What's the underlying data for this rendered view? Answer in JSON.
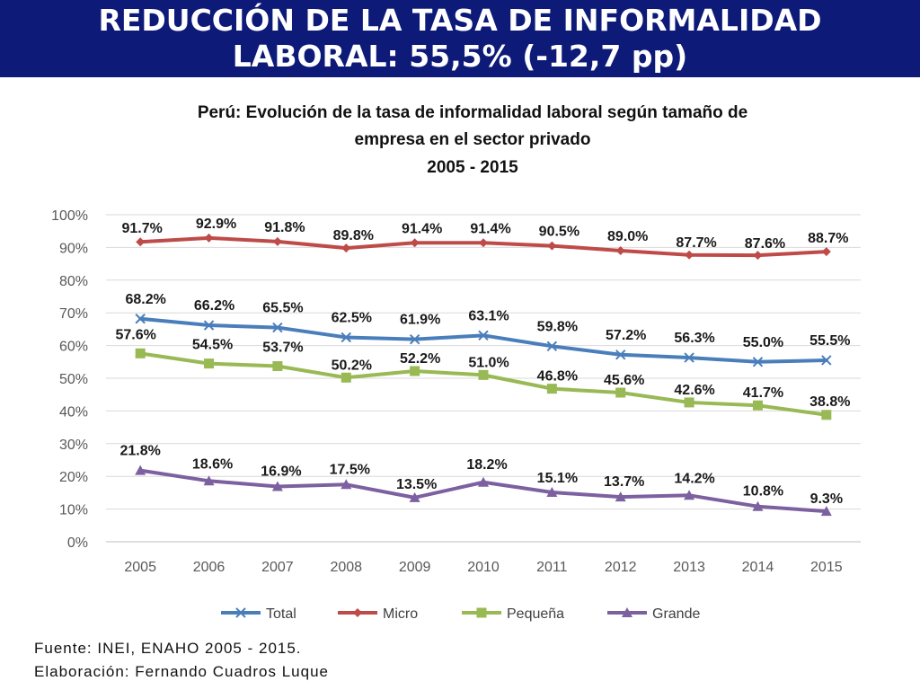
{
  "slide": {
    "banner_line1": "REDUCCIÓN DE LA TASA DE INFORMALIDAD",
    "banner_line2": "LABORAL: 55,5% (-12,7 pp)",
    "source": "Fuente: INEI, ENAHO 2005 - 2015.",
    "credit": "Elaboración: Fernando Cuadros Luque",
    "colors": {
      "banner": "#0d1a78"
    }
  },
  "chart_data": {
    "type": "line",
    "title": "Perú: Evolución de la tasa de informalidad laboral según tamaño de",
    "title_line2": "empresa en el sector privado",
    "subtitle": "2005 - 2015",
    "x": [
      "2005",
      "2006",
      "2007",
      "2008",
      "2009",
      "2010",
      "2011",
      "2012",
      "2013",
      "2014",
      "2015"
    ],
    "ylim": [
      0,
      100
    ],
    "yticks": [
      "0%",
      "10%",
      "20%",
      "30%",
      "40%",
      "50%",
      "60%",
      "70%",
      "80%",
      "90%",
      "100%"
    ],
    "grid": true,
    "legend_position": "bottom",
    "series": [
      {
        "name": "Total",
        "color": "#4a7ebb",
        "marker": "x",
        "values": [
          68.2,
          66.2,
          65.5,
          62.5,
          61.9,
          63.1,
          59.8,
          57.2,
          56.3,
          55.0,
          55.5
        ],
        "labels": [
          "68.2%",
          "66.2%",
          "65.5%",
          "62.5%",
          "61.9%",
          "63.1%",
          "59.8%",
          "57.2%",
          "56.3%",
          "55.0%",
          "55.5%"
        ]
      },
      {
        "name": "Micro",
        "color": "#be4b48",
        "marker": "diamond",
        "values": [
          91.7,
          92.9,
          91.8,
          89.8,
          91.4,
          91.4,
          90.5,
          89.0,
          87.7,
          87.6,
          88.7
        ],
        "labels": [
          "91.7%",
          "92.9%",
          "91.8%",
          "89.8%",
          "91.4%",
          "91.4%",
          "90.5%",
          "89.0%",
          "87.7%",
          "87.6%",
          "88.7%"
        ]
      },
      {
        "name": "Pequeña",
        "color": "#98b954",
        "marker": "square",
        "values": [
          57.6,
          54.5,
          53.7,
          50.2,
          52.2,
          51.0,
          46.8,
          45.6,
          42.6,
          41.7,
          38.8
        ],
        "labels": [
          "57.6%",
          "54.5%",
          "53.7%",
          "50.2%",
          "52.2%",
          "51.0%",
          "46.8%",
          "45.6%",
          "42.6%",
          "41.7%",
          "38.8%"
        ]
      },
      {
        "name": "Grande",
        "color": "#7d60a0",
        "marker": "triangle",
        "values": [
          21.8,
          18.6,
          16.9,
          17.5,
          13.5,
          18.2,
          15.1,
          13.7,
          14.2,
          10.8,
          9.3
        ],
        "labels": [
          "21.8%",
          "18.6%",
          "16.9%",
          "17.5%",
          "13.5%",
          "18.2%",
          "15.1%",
          "13.7%",
          "14.2%",
          "10.8%",
          "9.3%"
        ]
      }
    ]
  }
}
